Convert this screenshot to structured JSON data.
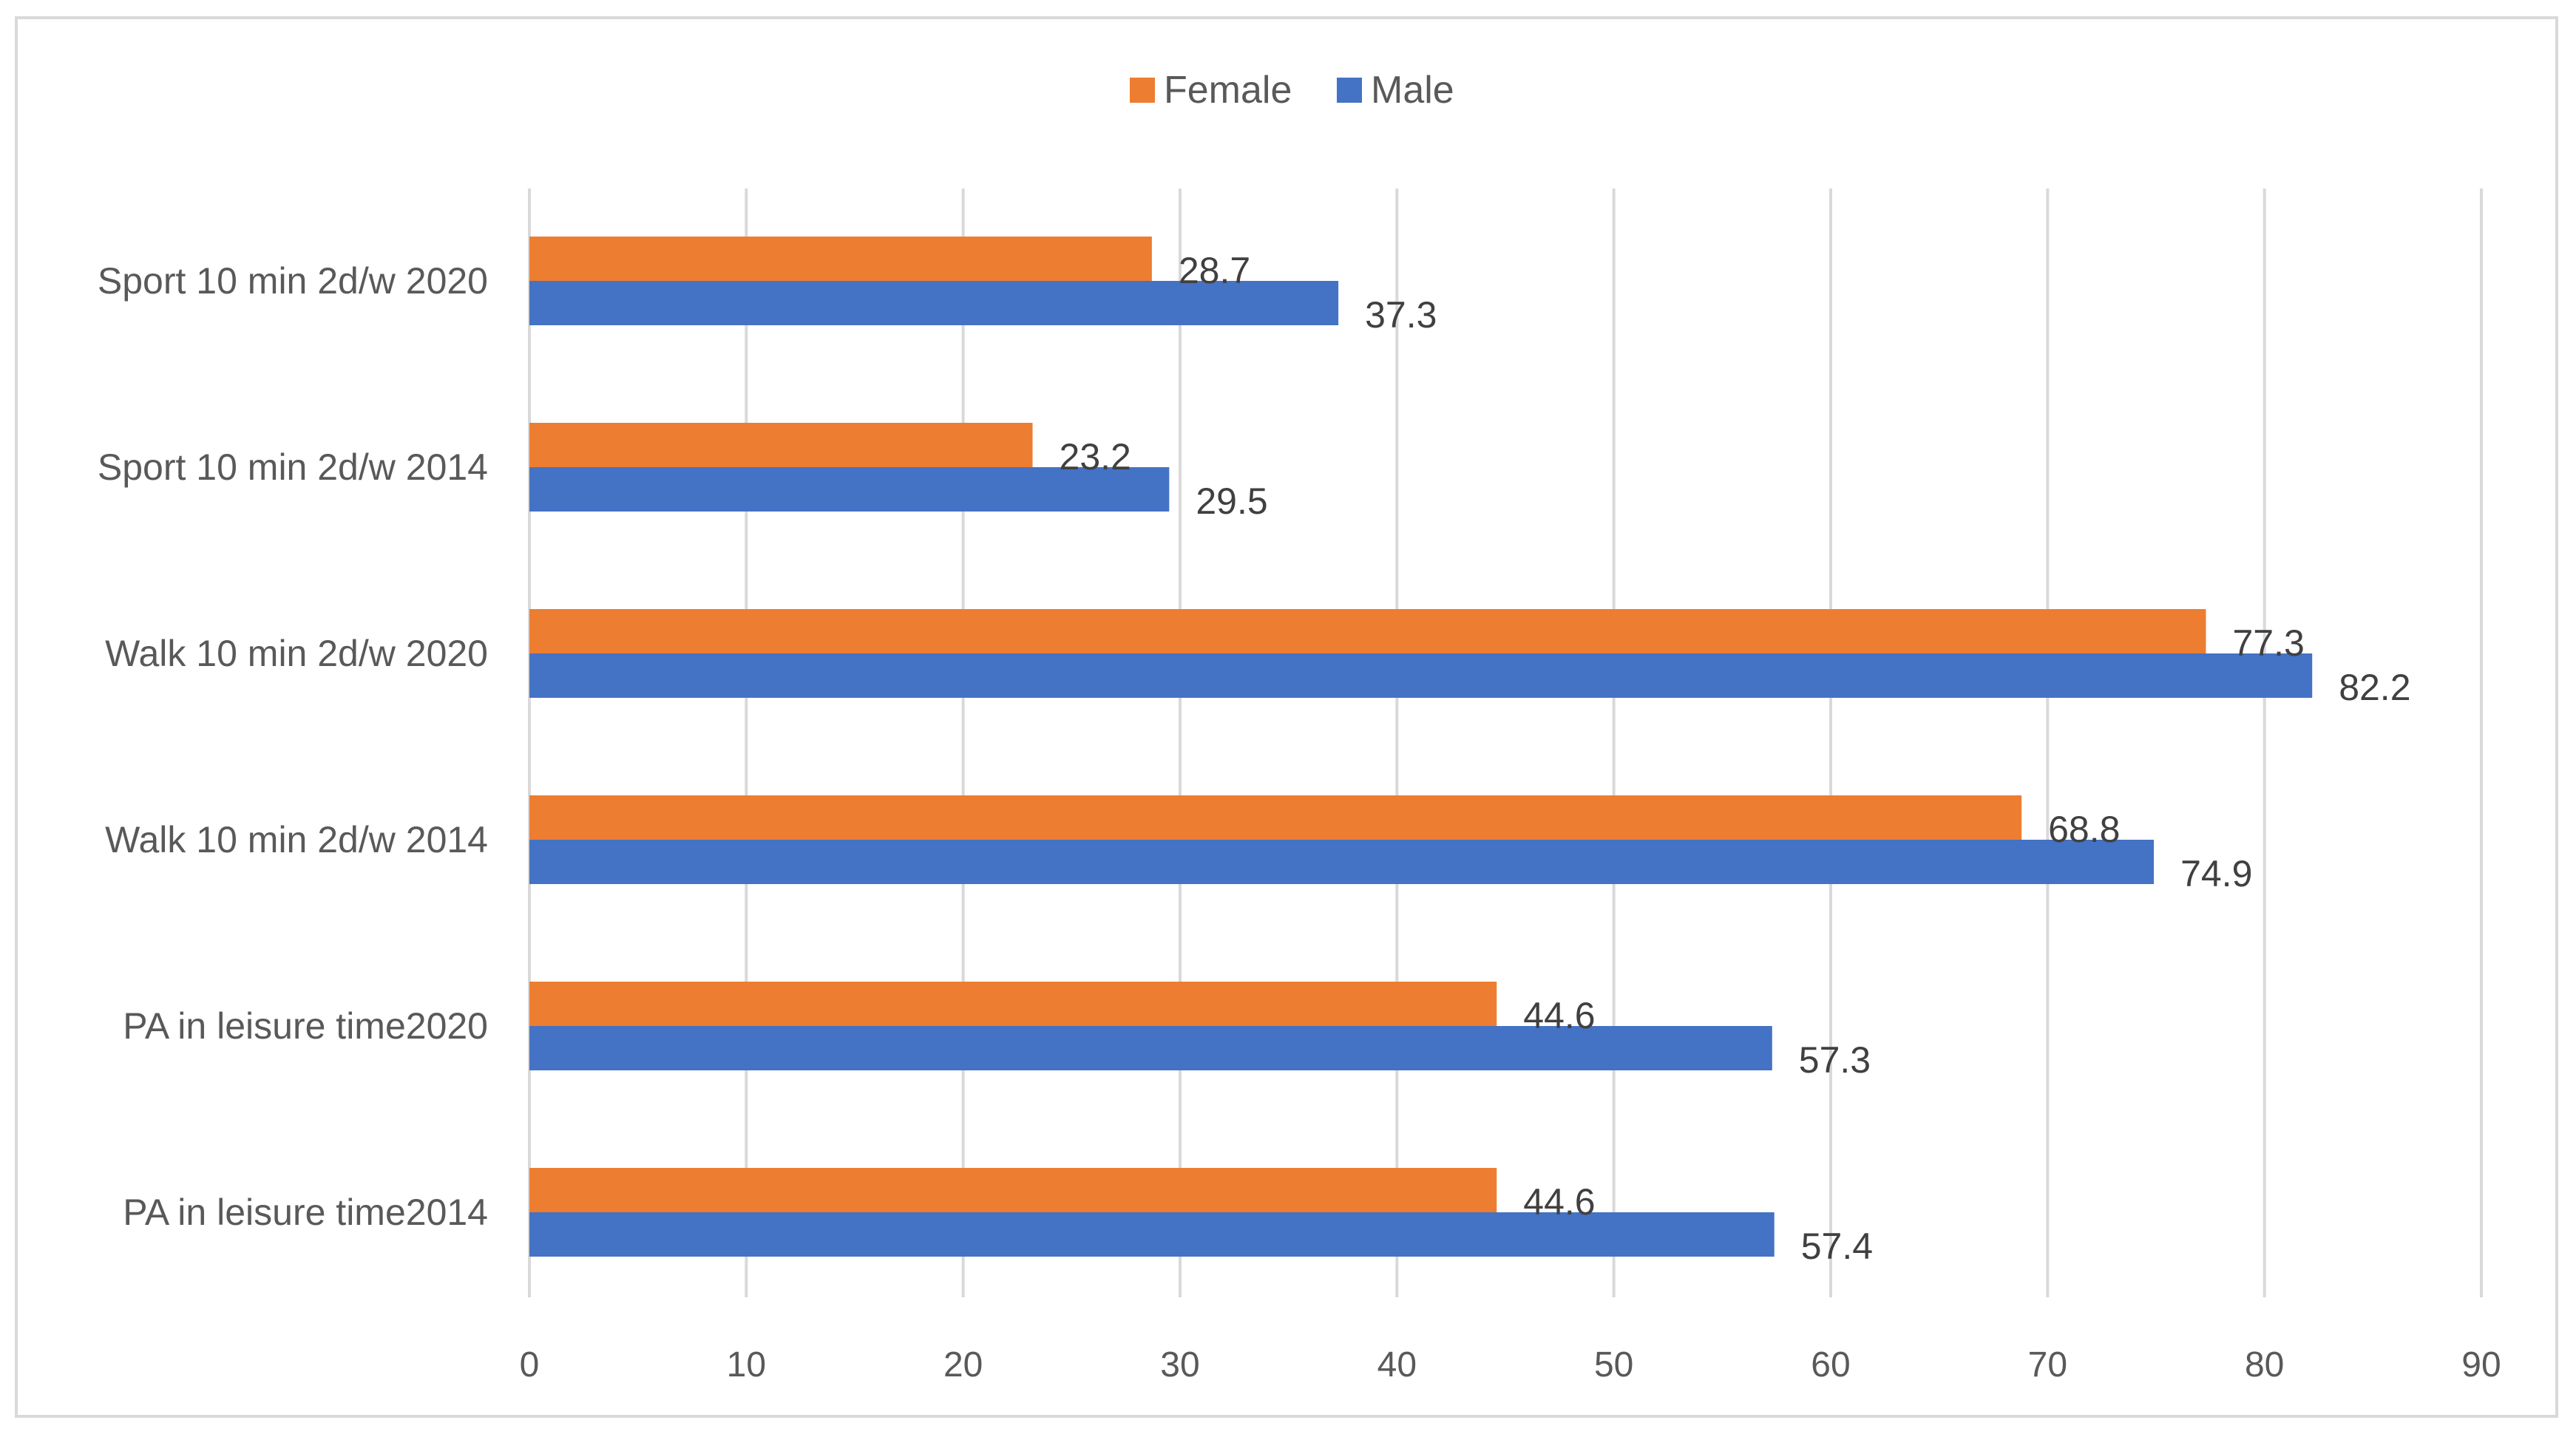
{
  "chart_data": {
    "type": "bar",
    "orientation": "horizontal",
    "title": "",
    "xlabel": "",
    "ylabel": "",
    "xlim": [
      0,
      90
    ],
    "ticks": [
      "0",
      "10",
      "20",
      "30",
      "40",
      "50",
      "60",
      "70",
      "80",
      "90"
    ],
    "grid": true,
    "legend_position": "top-center",
    "categories": [
      "Sport 10 min 2d/w 2020",
      "Sport 10 min 2d/w 2014",
      "Walk 10 min 2d/w 2020",
      "Walk 10 min 2d/w 2014",
      "PA in leisure time2020",
      "PA in leisure time2014"
    ],
    "series": [
      {
        "name": "Female",
        "color": "#ED7D31",
        "values": [
          28.7,
          23.2,
          77.3,
          68.8,
          44.6,
          44.6
        ],
        "labels": [
          "28.7",
          "23.2",
          "77.3",
          "68.8",
          "44.6",
          "44.6"
        ]
      },
      {
        "name": "Male",
        "color": "#4472C4",
        "values": [
          37.3,
          29.5,
          82.2,
          74.9,
          57.3,
          57.4
        ],
        "labels": [
          "37.3",
          "29.5",
          "82.2",
          "74.9",
          "57.3",
          "57.4"
        ]
      }
    ]
  },
  "colors": {
    "grid": "#d9d9d9",
    "text": "#595959",
    "frame": "#d9d9d9"
  }
}
